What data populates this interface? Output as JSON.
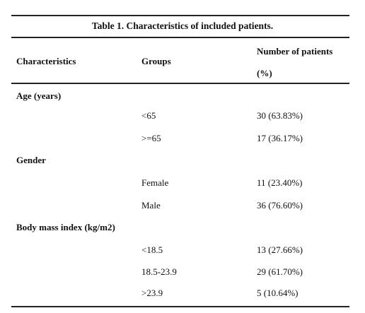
{
  "caption": "Table 1. Characteristics of included patients.",
  "headers": {
    "characteristics": "Characteristics",
    "groups": "Groups",
    "number_line1": "Number of patients",
    "number_line2": "(%)"
  },
  "sections": [
    {
      "label": "Age (years)",
      "rows": [
        {
          "group": "<65",
          "value": "30 (63.83%)"
        },
        {
          "group": ">=65",
          "value": "17 (36.17%)"
        }
      ]
    },
    {
      "label": "Gender",
      "rows": [
        {
          "group": "Female",
          "value": "11 (23.40%)"
        },
        {
          "group": "Male",
          "value": "36 (76.60%)"
        }
      ]
    },
    {
      "label": "Body mass index (kg/m2)",
      "rows": [
        {
          "group": "<18.5",
          "value": "13 (27.66%)"
        },
        {
          "group": "18.5-23.9",
          "value": "29 (61.70%)"
        },
        {
          "group": ">23.9",
          "value": "5 (10.64%)"
        }
      ]
    }
  ]
}
